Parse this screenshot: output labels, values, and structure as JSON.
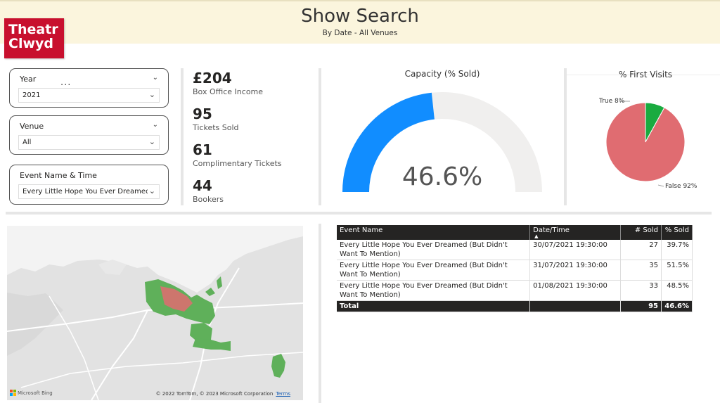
{
  "header": {
    "title": "Show Search",
    "subtitle": "By Date - All Venues"
  },
  "logo": {
    "line1": "Theatr",
    "line2": "Clwyd",
    "color": "#c8102e"
  },
  "slicers": {
    "year": {
      "label": "Year",
      "value": "2021"
    },
    "venue": {
      "label": "Venue",
      "value": "All"
    },
    "event": {
      "label": "Event Name & Time",
      "value": "Every Little Hope You Ever Dreamed ..."
    },
    "more_options": "..."
  },
  "kpis": {
    "income": {
      "value": "£204",
      "label": "Box Office Income"
    },
    "tickets": {
      "value": "95",
      "label": "Tickets Sold"
    },
    "comps": {
      "value": "61",
      "label": "Complimentary Tickets"
    },
    "bookers": {
      "value": "44",
      "label": "Bookers"
    }
  },
  "chart_data": [
    {
      "type": "gauge",
      "title": "Capacity (% Sold)",
      "value": 46.6,
      "display": "46.6%",
      "range": [
        0,
        100
      ],
      "fill_color": "#118dff",
      "track_color": "#f0efee"
    },
    {
      "type": "pie",
      "title": "% First Visits",
      "slices": [
        {
          "label": "True",
          "value": 8,
          "display": "True 8%",
          "color": "#1aab40"
        },
        {
          "label": "False",
          "value": 92,
          "display": "False 92%",
          "color": "#e06c71"
        }
      ]
    }
  ],
  "table": {
    "columns": [
      "Event Name",
      "Date/Time",
      "# Sold",
      "% Sold"
    ],
    "rows": [
      {
        "event": "Every Little Hope You Ever Dreamed (But Didn't Want To Mention)",
        "datetime": "30/07/2021 19:30:00",
        "sold": "27",
        "pct": "39.7%"
      },
      {
        "event": "Every Little Hope You Ever Dreamed (But Didn't Want To Mention)",
        "datetime": "31/07/2021 19:30:00",
        "sold": "35",
        "pct": "51.5%"
      },
      {
        "event": "Every Little Hope You Ever Dreamed (But Didn't Want To Mention)",
        "datetime": "01/08/2021 19:30:00",
        "sold": "33",
        "pct": "48.5%"
      }
    ],
    "total": {
      "label": "Total",
      "sold": "95",
      "pct": "46.6%"
    }
  },
  "map": {
    "attribution": "© 2022 TomTom, © 2023 Microsoft Corporation",
    "terms": "Terms",
    "bing_label": "Microsoft Bing"
  }
}
